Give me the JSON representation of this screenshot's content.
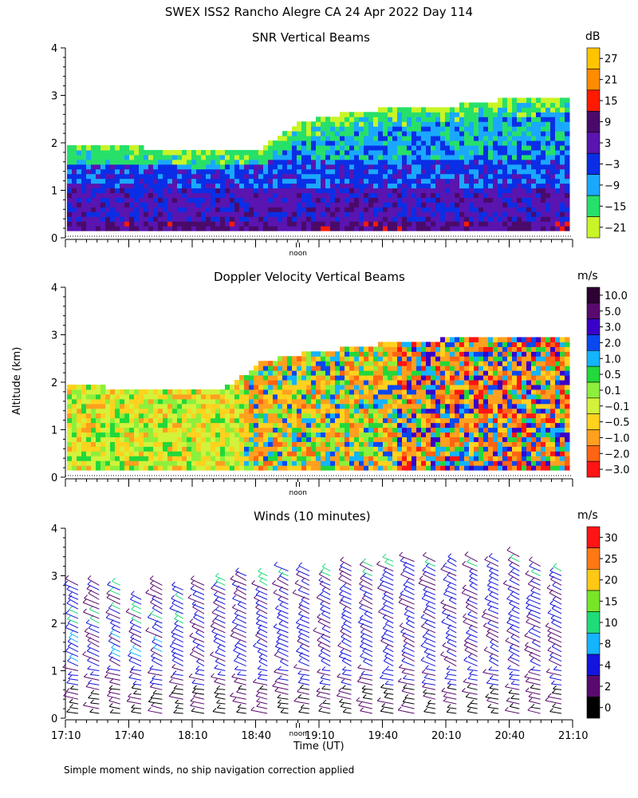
{
  "chart_data": {
    "figure_title": "SWEX ISS2 Rancho Alegre CA  24 Apr 2022 Day 114",
    "footnote": "Simple moment winds, no ship navigation correction applied",
    "time_axis": {
      "label": "Time (UT)",
      "ticks": [
        "17:10",
        "17:40",
        "18:10",
        "18:40",
        "19:10",
        "19:40",
        "20:10",
        "20:40",
        "21:10"
      ],
      "noon_label": "noon"
    },
    "altitude_axis": {
      "label": "Altitude (km)",
      "ticks": [
        "0",
        "1",
        "2",
        "3",
        "4"
      ],
      "range": [
        0,
        4
      ]
    },
    "panels": [
      {
        "type": "heatmap",
        "title": "SNR Vertical Beams",
        "units": "dB",
        "colorbar": {
          "labels": [
            "27",
            "21",
            "15",
            "9",
            "3",
            "−3",
            "−9",
            "−15",
            "−21"
          ],
          "colors": [
            "#ffc400",
            "#ff8c00",
            "#ff1a00",
            "#4a0a6a",
            "#5a14b0",
            "#0a2ee6",
            "#1aa8ff",
            "#27e06a",
            "#c8f428"
          ]
        },
        "echo_top_km": [
          1.9,
          1.9,
          1.85,
          1.8,
          1.8,
          1.85,
          2.4,
          2.55,
          2.65,
          2.7,
          2.75,
          2.85,
          2.9,
          2.95
        ]
      },
      {
        "type": "heatmap",
        "title": "Doppler Velocity Vertical Beams",
        "units": "m/s",
        "colorbar": {
          "labels": [
            "10.0",
            "5.0",
            "3.0",
            "2.0",
            "1.0",
            "0.5",
            "0.1",
            "−0.1",
            "−0.5",
            "−1.0",
            "−2.0",
            "−3.0"
          ],
          "colors": [
            "#2e0033",
            "#5a0a6e",
            "#3a00c8",
            "#0a48f0",
            "#14b4ff",
            "#22d83a",
            "#8cf03c",
            "#d2f23c",
            "#ffd21e",
            "#ffa01e",
            "#ff6414",
            "#ff1414"
          ]
        },
        "echo_top_km": [
          1.9,
          1.85,
          1.8,
          1.75,
          1.8,
          2.4,
          2.55,
          2.65,
          2.75,
          2.8,
          2.9,
          2.95,
          2.95,
          2.9
        ]
      },
      {
        "type": "wind barbs",
        "title": "Winds (10 minutes)",
        "units": "m/s",
        "colorbar": {
          "labels": [
            "30",
            "25",
            "20",
            "15",
            "10",
            "8",
            "4",
            "2",
            "0"
          ],
          "colors": [
            "#ff1414",
            "#ff7814",
            "#ffc814",
            "#78e628",
            "#1edc78",
            "#14b4ff",
            "#1414dc",
            "#5a0a6e",
            "#000000"
          ]
        },
        "profile_tops_km": [
          2.9,
          2.85,
          2.85,
          2.6,
          2.85,
          2.8,
          2.9,
          3.0,
          3.05,
          3.1,
          3.15,
          3.2,
          3.2,
          3.25,
          3.3,
          3.35,
          3.35,
          3.35,
          3.35,
          3.35,
          3.4,
          3.45,
          3.3,
          3.2
        ]
      }
    ]
  }
}
